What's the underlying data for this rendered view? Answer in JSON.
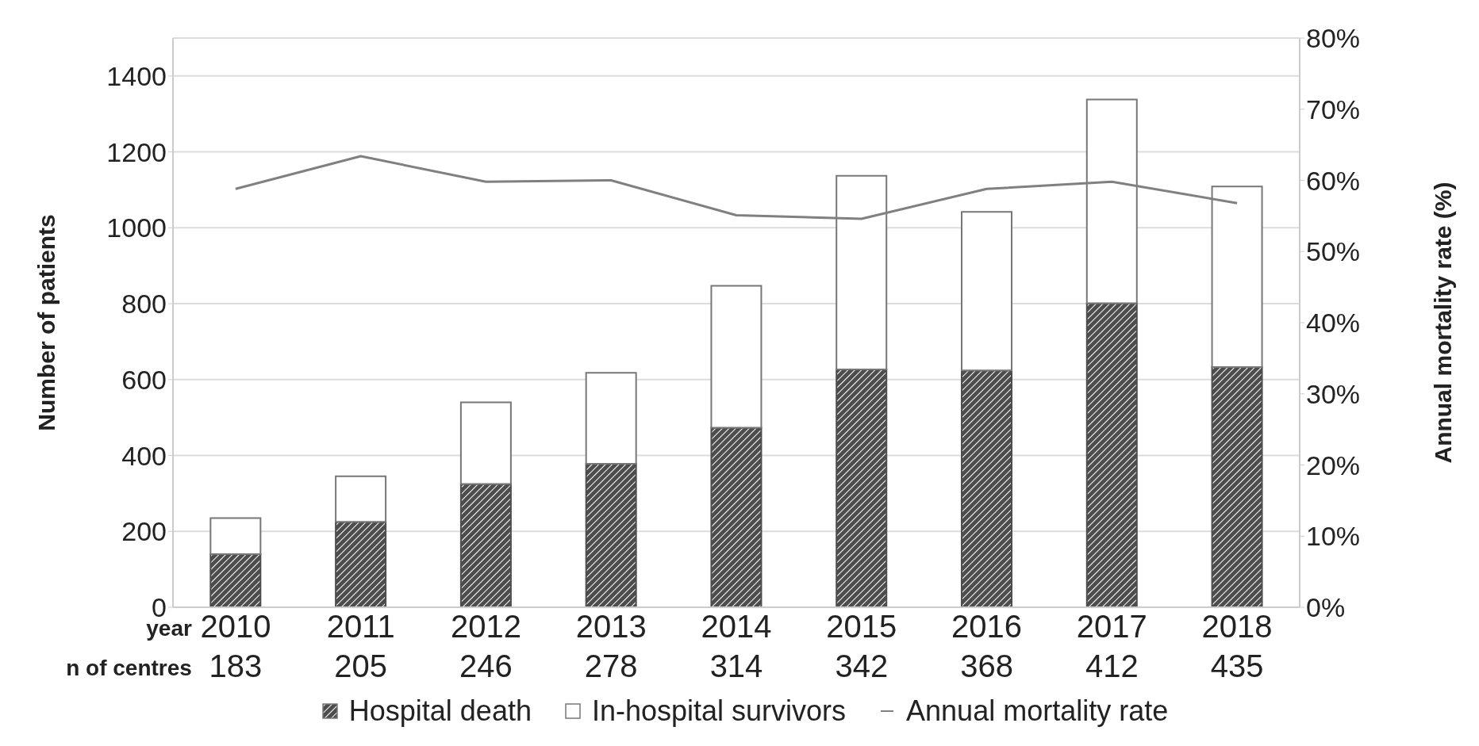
{
  "chart_data": {
    "type": "bar",
    "stacked": true,
    "ylabel": "Number of patients",
    "y2label": "Annual mortality rate (%)",
    "categories": [
      "2010",
      "2011",
      "2012",
      "2013",
      "2014",
      "2015",
      "2016",
      "2017",
      "2018"
    ],
    "series": [
      {
        "name": "Hospital death",
        "color": "#4d4d4d",
        "values": [
          140,
          225,
          325,
          378,
          473,
          627,
          624,
          801,
          633
        ]
      },
      {
        "name": "In-hospital survivors",
        "color": "#ffffff",
        "values": [
          95,
          120,
          215,
          240,
          374,
          510,
          418,
          537,
          476
        ]
      },
      {
        "name": "Annual mortality rate",
        "type": "line",
        "axis": "y2",
        "color": "#808080",
        "values": [
          58.8,
          63.4,
          59.8,
          60.0,
          55.1,
          54.6,
          58.8,
          59.8,
          56.8
        ]
      }
    ],
    "ylim": [
      0,
      1500
    ],
    "yticks": [
      0,
      200,
      400,
      600,
      800,
      1000,
      1200,
      1400
    ],
    "y2lim": [
      0,
      80
    ],
    "y2ticks": [
      {
        "value": 0,
        "label": "0%"
      },
      {
        "value": 10,
        "label": "10%"
      },
      {
        "value": 20,
        "label": "20%"
      },
      {
        "value": 30,
        "label": "30%"
      },
      {
        "value": 40,
        "label": "40%"
      },
      {
        "value": 50,
        "label": "50%"
      },
      {
        "value": 60,
        "label": "60%"
      },
      {
        "value": 70,
        "label": "70%"
      },
      {
        "value": 80,
        "label": "80%"
      }
    ],
    "annotations": [
      "year",
      "n of centres",
      "183",
      "205",
      "246",
      "278",
      "314",
      "342",
      "368",
      "412",
      "435"
    ],
    "grid": "y",
    "legend": "bottom",
    "marker": "none",
    "line_style": "solid"
  }
}
